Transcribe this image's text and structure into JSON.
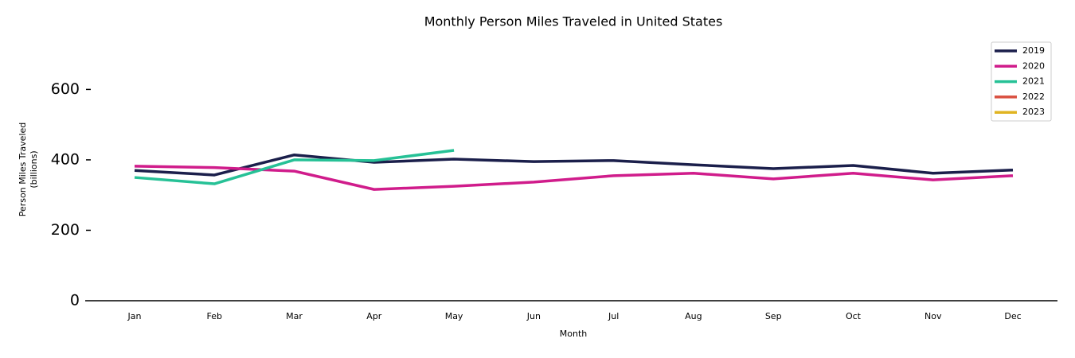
{
  "chart_data": {
    "type": "line",
    "title": "Monthly Person Miles Traveled in United States",
    "x_label": "Month",
    "y_label": [
      "Person Miles Traveled",
      "(billions)"
    ],
    "categories": [
      "Jan",
      "Feb",
      "Mar",
      "Apr",
      "May",
      "Jun",
      "Jul",
      "Aug",
      "Sep",
      "Oct",
      "Nov",
      "Dec"
    ],
    "series": [
      {
        "name": "2019",
        "color": "#1b1f4b",
        "values": [
          370,
          357,
          414,
          393,
          402,
          395,
          398,
          386,
          375,
          384,
          362,
          371
        ]
      },
      {
        "name": "2020",
        "color": "#d01c8b",
        "values": [
          382,
          378,
          368,
          316,
          325,
          337,
          355,
          362,
          346,
          362,
          343,
          355
        ]
      },
      {
        "name": "2021",
        "color": "#26c196",
        "values": [
          350,
          332,
          400,
          398,
          427,
          null,
          null,
          null,
          null,
          null,
          null,
          null
        ]
      },
      {
        "name": "2022",
        "color": "#d94f3f",
        "values": [
          null,
          null,
          null,
          null,
          null,
          null,
          null,
          null,
          null,
          null,
          null,
          null
        ]
      },
      {
        "name": "2023",
        "color": "#e0b422",
        "values": [
          null,
          null,
          null,
          null,
          null,
          null,
          null,
          null,
          null,
          null,
          null,
          null
        ]
      }
    ],
    "ylim": [
      0,
      750
    ],
    "yticks": [
      0,
      200,
      400,
      600
    ],
    "legend": "upper right"
  }
}
